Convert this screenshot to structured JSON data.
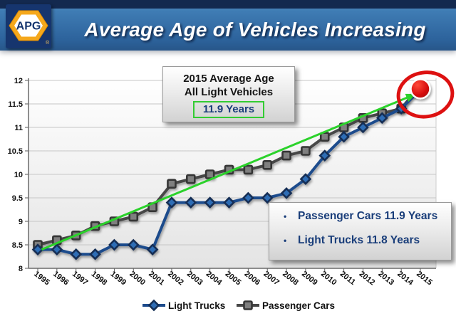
{
  "header": {
    "logo_text": "APG",
    "registered_mark": "®",
    "title": "Average Age of Vehicles Increasing"
  },
  "annotation_box": {
    "line1": "2015 Average Age",
    "line2": "All Light Vehicles",
    "highlight": "11.9 Years"
  },
  "summary_box": {
    "items": [
      {
        "bullet": "•",
        "text": "Passenger Cars 11.9 Years"
      },
      {
        "bullet": "•",
        "text": "Light Trucks 11.8 Years"
      }
    ]
  },
  "colors": {
    "header_navy": "#13294f",
    "header_blue": "#2d639c",
    "logo_gold": "#f5a81c",
    "accent_green": "#2bd22b",
    "highlight_red": "#dd1111",
    "box_text_blue": "#1a3e7a"
  },
  "chart_data": {
    "type": "line",
    "title": "",
    "xlabel": "",
    "ylabel": "",
    "x": [
      1995,
      1996,
      1997,
      1998,
      1999,
      2000,
      2001,
      2002,
      2003,
      2004,
      2005,
      2006,
      2007,
      2008,
      2009,
      2010,
      2011,
      2012,
      2013,
      2014,
      2015
    ],
    "ylim": [
      8,
      12
    ],
    "ytick_step": 0.5,
    "grid": true,
    "legend_position": "bottom",
    "series": [
      {
        "name": "Light Trucks",
        "marker": "diamond",
        "line_color": "#1d4b8c",
        "marker_fill": "#2e6db5",
        "marker_edge": "#142f55",
        "values": [
          8.4,
          8.4,
          8.3,
          8.3,
          8.5,
          8.5,
          8.4,
          9.4,
          9.4,
          9.4,
          9.4,
          9.5,
          9.5,
          9.6,
          9.9,
          10.4,
          10.8,
          11.0,
          11.2,
          11.4,
          11.8
        ]
      },
      {
        "name": "Passenger Cars",
        "marker": "square",
        "line_color": "#474747",
        "marker_fill": "#7f7f7f",
        "marker_edge": "#363636",
        "values": [
          8.5,
          8.6,
          8.7,
          8.9,
          9.0,
          9.1,
          9.3,
          9.8,
          9.9,
          10.0,
          10.1,
          10.1,
          10.2,
          10.4,
          10.5,
          10.8,
          11.0,
          11.2,
          11.3,
          11.4,
          11.9
        ]
      }
    ],
    "trend_arrow": {
      "color": "#2bd22b",
      "from": {
        "year": 1995.2,
        "value": 8.4
      },
      "to": {
        "year": 2014.7,
        "value": 11.7
      }
    },
    "highlight_point": {
      "year": 2015,
      "value": 11.82,
      "dot_color": "#cc0000",
      "circle_color": "#dd1111"
    }
  }
}
